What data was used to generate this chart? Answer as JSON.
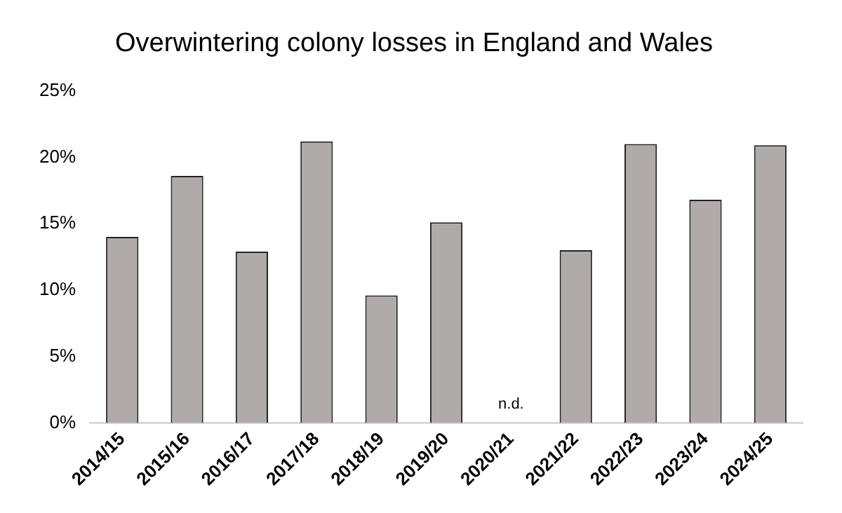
{
  "chart_data": {
    "type": "bar",
    "title": "Overwintering colony losses in England and Wales",
    "categories": [
      "2014/15",
      "2015/16",
      "2016/17",
      "2017/18",
      "2018/19",
      "2019/20",
      "2020/21",
      "2021/22",
      "2022/23",
      "2023/24",
      "2024/25"
    ],
    "values": [
      14.0,
      18.6,
      12.9,
      21.2,
      9.6,
      15.1,
      null,
      13.0,
      21.0,
      16.8,
      20.9
    ],
    "color": "#afabab",
    "ylim": [
      0,
      25
    ],
    "yticks": [
      {
        "value": 0,
        "label": "0%"
      },
      {
        "value": 5,
        "label": "5%"
      },
      {
        "value": 10,
        "label": "10%"
      },
      {
        "value": 15,
        "label": "15%"
      },
      {
        "value": 20,
        "label": "20%"
      },
      {
        "value": 25,
        "label": "25%"
      }
    ],
    "grid": false,
    "legend": false,
    "annotations": [
      "n.d."
    ]
  }
}
